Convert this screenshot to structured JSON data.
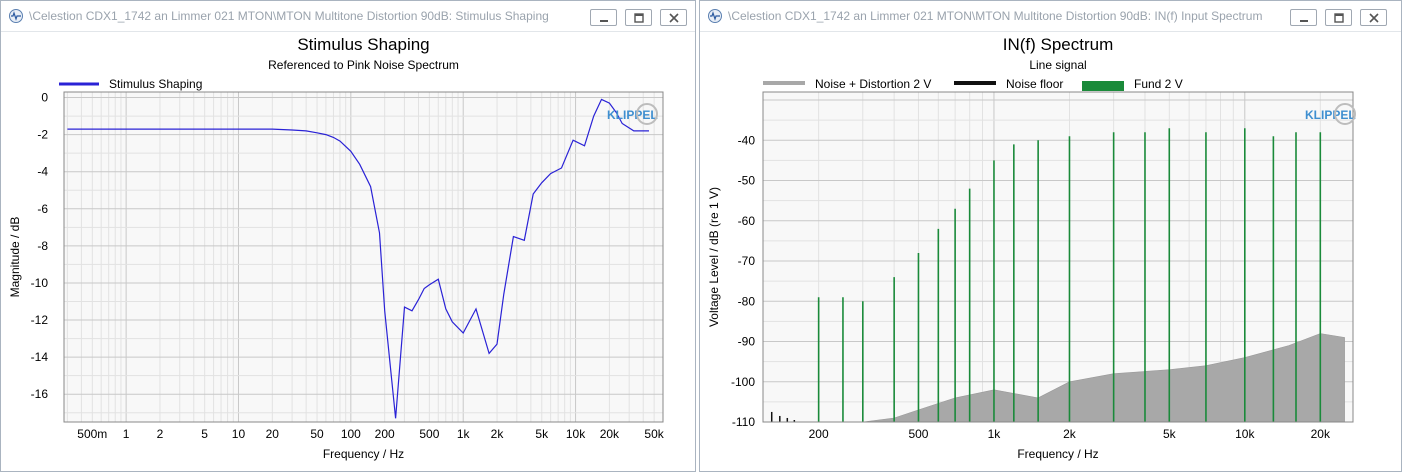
{
  "windows": [
    {
      "title": "\\Celestion CDX1_1742 an Limmer 021 MTON\\MTON Multitone Distortion 90dB: Stimulus Shaping",
      "buttons": [
        "minimize",
        "restore",
        "close"
      ]
    },
    {
      "title": "\\Celestion CDX1_1742 an Limmer 021 MTON\\MTON Multitone Distortion 90dB: IN(f) Input Spectrum",
      "buttons": [
        "minimize",
        "restore",
        "close"
      ]
    }
  ],
  "chart_data": [
    {
      "type": "line",
      "title": "Stimulus Shaping",
      "subtitle": "Referenced to Pink Noise Spectrum",
      "xlabel": "Frequency / Hz",
      "ylabel": "Magnitude / dB",
      "xscale": "log",
      "xlim": [
        0.28,
        60000
      ],
      "ylim": [
        -17.5,
        0.3
      ],
      "grid": true,
      "legend_position": "top-left",
      "x_tick_values": [
        0.5,
        1,
        2,
        5,
        10,
        20,
        50,
        100,
        200,
        500,
        1000,
        2000,
        5000,
        10000,
        20000,
        50000
      ],
      "x_tick_labels": [
        "500m",
        "1",
        "2",
        "5",
        "10",
        "20",
        "50",
        "100",
        "200",
        "500",
        "1k",
        "2k",
        "5k",
        "10k",
        "20k",
        "50k"
      ],
      "y_ticks": [
        0,
        -2,
        -4,
        -6,
        -8,
        -10,
        -12,
        -14,
        -16
      ],
      "series": [
        {
          "name": "Stimulus Shaping",
          "color": "#2a22d6",
          "x": [
            0.3,
            1,
            5,
            10,
            20,
            30,
            40,
            50,
            60,
            70,
            80,
            100,
            120,
            150,
            180,
            200,
            250,
            300,
            350,
            400,
            450,
            500,
            600,
            700,
            800,
            1000,
            1300,
            1700,
            2000,
            2300,
            2800,
            3500,
            4200,
            5000,
            6000,
            7500,
            9500,
            12000,
            14500,
            17000,
            20000,
            23000,
            26000,
            33000,
            45000
          ],
          "values": [
            -1.7,
            -1.7,
            -1.7,
            -1.7,
            -1.7,
            -1.75,
            -1.8,
            -1.9,
            -2.0,
            -2.15,
            -2.35,
            -2.9,
            -3.6,
            -4.8,
            -7.3,
            -11.5,
            -17.3,
            -11.3,
            -11.5,
            -10.9,
            -10.3,
            -10.1,
            -9.8,
            -11.4,
            -12.1,
            -12.7,
            -11.4,
            -13.8,
            -13.3,
            -10.6,
            -7.5,
            -7.7,
            -5.2,
            -4.6,
            -4.1,
            -3.8,
            -2.3,
            -2.6,
            -1.0,
            -0.1,
            -0.3,
            -0.8,
            -1.4,
            -1.8,
            -1.8
          ]
        }
      ]
    },
    {
      "type": "bar",
      "title": "IN(f) Spectrum",
      "subtitle": "Line signal",
      "xlabel": "Frequency / Hz",
      "ylabel": "Voltage Level / dB (re 1 V)",
      "xscale": "log",
      "xlim": [
        120,
        27000
      ],
      "ylim": [
        -110,
        -28
      ],
      "grid": true,
      "legend_position": "top",
      "x_ticks": [
        200,
        500,
        1000,
        2000,
        5000,
        10000,
        20000
      ],
      "x_tick_labels": [
        "200",
        "500",
        "1k",
        "2k",
        "5k",
        "10k",
        "20k"
      ],
      "y_ticks": [
        -40,
        -50,
        -60,
        -70,
        -80,
        -90,
        -100,
        -110
      ],
      "series": [
        {
          "name": "Noise + Distortion 2 V",
          "color": "#a8a8a8",
          "x": [
            200,
            300,
            400,
            500,
            700,
            1000,
            1500,
            2000,
            3000,
            5000,
            7000,
            10000,
            15000,
            20000,
            25000
          ],
          "values": [
            -110,
            -110,
            -109,
            -107,
            -104,
            -102,
            -104,
            -100,
            -98,
            -97,
            -96,
            -94,
            -91,
            -88,
            -89
          ]
        },
        {
          "name": "Noise floor",
          "color": "#111111",
          "x": [
            130,
            140,
            150,
            160
          ],
          "values": [
            -107.5,
            -108.5,
            -109,
            -109.5
          ]
        },
        {
          "name": "Fund 2 V",
          "color": "#1a8a3a",
          "x": [
            200,
            250,
            300,
            400,
            500,
            600,
            700,
            800,
            1000,
            1200,
            1500,
            2000,
            3000,
            4000,
            5000,
            7000,
            10000,
            13000,
            16000,
            20000
          ],
          "values": [
            -79,
            -79,
            -80,
            -74,
            -68,
            -62,
            -57,
            -52,
            -45,
            -41,
            -40,
            -39,
            -38,
            -38,
            -37,
            -38,
            -37,
            -39,
            -38,
            -38
          ]
        }
      ]
    }
  ]
}
